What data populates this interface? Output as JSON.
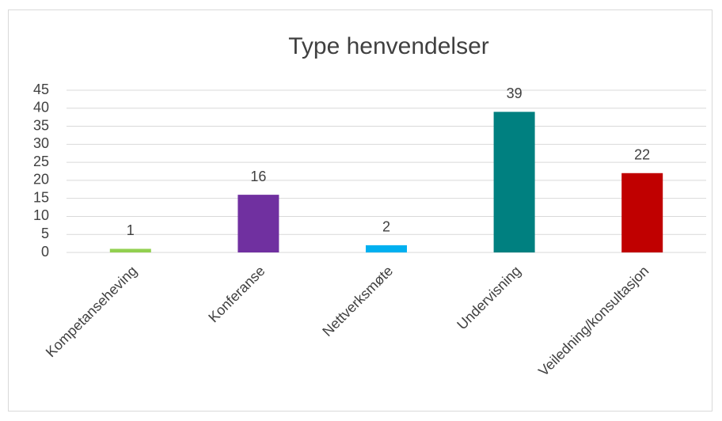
{
  "chart_data": {
    "type": "bar",
    "title": "Type henvendelser",
    "categories": [
      "Kompetanseheving",
      "Konferanse",
      "Nettverksmøte",
      "Undervisning",
      "Veiledning/konsultasjon"
    ],
    "values": [
      1,
      16,
      2,
      39,
      22
    ],
    "colors": [
      "#92d050",
      "#7030a0",
      "#00b0f0",
      "#008080",
      "#c00000"
    ],
    "ylim": [
      0,
      45
    ],
    "yticks": [
      0,
      5,
      10,
      15,
      20,
      25,
      30,
      35,
      40,
      45
    ],
    "grid": true
  }
}
